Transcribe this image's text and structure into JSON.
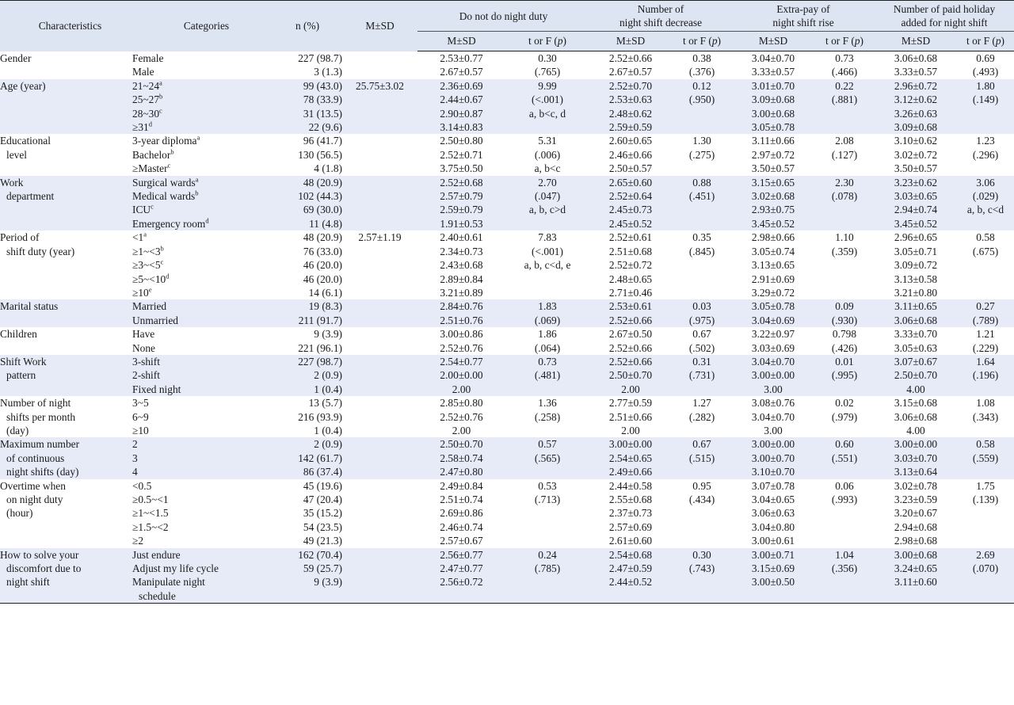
{
  "header": {
    "characteristics": "Characteristics",
    "categories": "Categories",
    "n_pct": "n (%)",
    "msd": "M±SD",
    "groups": [
      [
        "Do not do night duty"
      ],
      [
        "Number of",
        "night shift decrease"
      ],
      [
        "Extra-pay of",
        "night shift rise"
      ],
      [
        "Number of paid holiday",
        "added for night shift"
      ]
    ],
    "sub_msd": "M±SD",
    "sub_t": "t or F (p)"
  },
  "rows": [
    {
      "char": [
        "Gender"
      ],
      "cats": [
        [
          "Female",
          ""
        ],
        [
          "Male",
          ""
        ]
      ],
      "n": [
        "227 (98.7)",
        "3 (1.3)"
      ],
      "msd": [],
      "g": [
        {
          "m": [
            "2.53±0.77",
            "2.67±0.57"
          ],
          "t": [
            "0.30",
            "(.765)"
          ]
        },
        {
          "m": [
            "2.52±0.66",
            "2.67±0.57"
          ],
          "t": [
            "0.38",
            "(.376)"
          ]
        },
        {
          "m": [
            "3.04±0.70",
            "3.33±0.57"
          ],
          "t": [
            "0.73",
            "(.466)"
          ]
        },
        {
          "m": [
            "3.06±0.68",
            "3.33±0.57"
          ],
          "t": [
            "0.69",
            "(.493)"
          ]
        }
      ]
    },
    {
      "char": [
        "Age (year)"
      ],
      "cats": [
        [
          "21~24",
          "a"
        ],
        [
          "25~27",
          "b"
        ],
        [
          "28~30",
          "c"
        ],
        [
          "≥31",
          "d"
        ]
      ],
      "n": [
        "99 (43.0)",
        "78 (33.9)",
        "31 (13.5)",
        "22 (9.6)"
      ],
      "msd": [
        "25.75±3.02"
      ],
      "g": [
        {
          "m": [
            "2.36±0.69",
            "2.44±0.67",
            "2.90±0.87",
            "3.14±0.83"
          ],
          "t": [
            "9.99",
            "(<.001)",
            "a, b<c, d"
          ]
        },
        {
          "m": [
            "2.52±0.70",
            "2.53±0.63",
            "2.48±0.62",
            "2.59±0.59"
          ],
          "t": [
            "0.12",
            "(.950)"
          ]
        },
        {
          "m": [
            "3.01±0.70",
            "3.09±0.68",
            "3.00±0.68",
            "3.05±0.78"
          ],
          "t": [
            "0.22",
            "(.881)"
          ]
        },
        {
          "m": [
            "2.96±0.72",
            "3.12±0.62",
            "3.26±0.63",
            "3.09±0.68"
          ],
          "t": [
            "1.80",
            "(.149)"
          ]
        }
      ]
    },
    {
      "char": [
        "Educational",
        "level"
      ],
      "cats": [
        [
          "3-year diploma",
          "a"
        ],
        [
          "Bachelor",
          "b"
        ],
        [
          "≥Master",
          "c"
        ]
      ],
      "n": [
        "96 (41.7)",
        "130 (56.5)",
        "4 (1.8)"
      ],
      "msd": [],
      "g": [
        {
          "m": [
            "2.50±0.80",
            "2.52±0.71",
            "3.75±0.50"
          ],
          "t": [
            "5.31",
            "(.006)",
            "a, b<c"
          ]
        },
        {
          "m": [
            "2.60±0.65",
            "2.46±0.66",
            "2.50±0.57"
          ],
          "t": [
            "1.30",
            "(.275)"
          ]
        },
        {
          "m": [
            "3.11±0.66",
            "2.97±0.72",
            "3.50±0.57"
          ],
          "t": [
            "2.08",
            "(.127)"
          ]
        },
        {
          "m": [
            "3.10±0.62",
            "3.02±0.72",
            "3.50±0.57"
          ],
          "t": [
            "1.23",
            "(.296)"
          ]
        }
      ]
    },
    {
      "char": [
        "Work",
        "department"
      ],
      "cats": [
        [
          "Surgical wards",
          "a"
        ],
        [
          "Medical wards",
          "b"
        ],
        [
          "ICU",
          "c"
        ],
        [
          "Emergency room",
          "d"
        ]
      ],
      "n": [
        "48 (20.9)",
        "102 (44.3)",
        "69 (30.0)",
        "11 (4.8)"
      ],
      "msd": [],
      "g": [
        {
          "m": [
            "2.52±0.68",
            "2.57±0.79",
            "2.59±0.79",
            "1.91±0.53"
          ],
          "t": [
            "2.70",
            "(.047)",
            "a, b, c>d"
          ]
        },
        {
          "m": [
            "2.65±0.60",
            "2.52±0.64",
            "2.45±0.73",
            "2.45±0.52"
          ],
          "t": [
            "0.88",
            "(.451)"
          ]
        },
        {
          "m": [
            "3.15±0.65",
            "3.02±0.68",
            "2.93±0.75",
            "3.45±0.52"
          ],
          "t": [
            "2.30",
            "(.078)"
          ]
        },
        {
          "m": [
            "3.23±0.62",
            "3.03±0.65",
            "2.94±0.74",
            "3.45±0.52"
          ],
          "t": [
            "3.06",
            "(.029)",
            "a, b, c<d"
          ]
        }
      ]
    },
    {
      "char": [
        "Period of",
        "shift duty (year)"
      ],
      "cats": [
        [
          "<1",
          "a"
        ],
        [
          "≥1~<3",
          "b"
        ],
        [
          "≥3~<5",
          "c"
        ],
        [
          "≥5~<10",
          "d"
        ],
        [
          "≥10",
          "e"
        ]
      ],
      "n": [
        "48 (20.9)",
        "76 (33.0)",
        "46 (20.0)",
        "46 (20.0)",
        "14 (6.1)"
      ],
      "msd": [
        "2.57±1.19"
      ],
      "g": [
        {
          "m": [
            "2.40±0.61",
            "2.34±0.73",
            "2.43±0.68",
            "2.89±0.84",
            "3.21±0.89"
          ],
          "t": [
            "7.83",
            "(<.001)",
            "a, b, c<d, e"
          ]
        },
        {
          "m": [
            "2.52±0.61",
            "2.51±0.68",
            "2.52±0.72",
            "2.48±0.65",
            "2.71±0.46"
          ],
          "t": [
            "0.35",
            "(.845)"
          ]
        },
        {
          "m": [
            "2.98±0.66",
            "3.05±0.74",
            "3.13±0.65",
            "2.91±0.69",
            "3.29±0.72"
          ],
          "t": [
            "1.10",
            "(.359)"
          ]
        },
        {
          "m": [
            "2.96±0.65",
            "3.05±0.71",
            "3.09±0.72",
            "3.13±0.58",
            "3.21±0.80"
          ],
          "t": [
            "0.58",
            "(.675)"
          ]
        }
      ]
    },
    {
      "char": [
        "Marital status"
      ],
      "cats": [
        [
          "Married",
          ""
        ],
        [
          "Unmarried",
          ""
        ]
      ],
      "n": [
        "19 (8.3)",
        "211 (91.7)"
      ],
      "msd": [],
      "g": [
        {
          "m": [
            "2.84±0.76",
            "2.51±0.76"
          ],
          "t": [
            "1.83",
            "(.069)"
          ]
        },
        {
          "m": [
            "2.53±0.61",
            "2.52±0.66"
          ],
          "t": [
            "0.03",
            "(.975)"
          ]
        },
        {
          "m": [
            "3.05±0.78",
            "3.04±0.69"
          ],
          "t": [
            "0.09",
            "(.930)"
          ]
        },
        {
          "m": [
            "3.11±0.65",
            "3.06±0.68"
          ],
          "t": [
            "0.27",
            "(.789)"
          ]
        }
      ]
    },
    {
      "char": [
        "Children"
      ],
      "cats": [
        [
          "Have",
          ""
        ],
        [
          "None",
          ""
        ]
      ],
      "n": [
        "9 (3.9)",
        "221 (96.1)"
      ],
      "msd": [],
      "g": [
        {
          "m": [
            "3.00±0.86",
            "2.52±0.76"
          ],
          "t": [
            "1.86",
            "(.064)"
          ]
        },
        {
          "m": [
            "2.67±0.50",
            "2.52±0.66"
          ],
          "t": [
            "0.67",
            "(.502)"
          ]
        },
        {
          "m": [
            "3.22±0.97",
            "3.03±0.69"
          ],
          "t": [
            "0.798",
            "(.426)"
          ]
        },
        {
          "m": [
            "3.33±0.70",
            "3.05±0.63"
          ],
          "t": [
            "1.21",
            "(.229)"
          ]
        }
      ]
    },
    {
      "char": [
        "Shift Work",
        "pattern"
      ],
      "cats": [
        [
          "3-shift",
          ""
        ],
        [
          "2-shift",
          ""
        ],
        [
          "Fixed night",
          ""
        ]
      ],
      "n": [
        "227 (98.7)",
        "2 (0.9)",
        "1 (0.4)"
      ],
      "msd": [],
      "g": [
        {
          "m": [
            "2.54±0.77",
            "2.00±0.00",
            "2.00"
          ],
          "t": [
            "0.73",
            "(.481)"
          ]
        },
        {
          "m": [
            "2.52±0.66",
            "2.50±0.70",
            "2.00"
          ],
          "t": [
            "0.31",
            "(.731)"
          ]
        },
        {
          "m": [
            "3.04±0.70",
            "3.00±0.00",
            "3.00"
          ],
          "t": [
            "0.01",
            "(.995)"
          ]
        },
        {
          "m": [
            "3.07±0.67",
            "2.50±0.70",
            "4.00"
          ],
          "t": [
            "1.64",
            "(.196)"
          ]
        }
      ]
    },
    {
      "char": [
        "Number of night",
        "shifts per month",
        "(day)"
      ],
      "cats": [
        [
          "3~5",
          ""
        ],
        [
          "6~9",
          ""
        ],
        [
          "≥10",
          ""
        ]
      ],
      "n": [
        "13 (5.7)",
        "216 (93.9)",
        "1 (0.4)"
      ],
      "msd": [],
      "g": [
        {
          "m": [
            "2.85±0.80",
            "2.52±0.76",
            "2.00"
          ],
          "t": [
            "1.36",
            "(.258)"
          ]
        },
        {
          "m": [
            "2.77±0.59",
            "2.51±0.66",
            "2.00"
          ],
          "t": [
            "1.27",
            "(.282)"
          ]
        },
        {
          "m": [
            "3.08±0.76",
            "3.04±0.70",
            "3.00"
          ],
          "t": [
            "0.02",
            "(.979)"
          ]
        },
        {
          "m": [
            "3.15±0.68",
            "3.06±0.68",
            "4.00"
          ],
          "t": [
            "1.08",
            "(.343)"
          ]
        }
      ]
    },
    {
      "char": [
        "Maximum number",
        "of continuous",
        "night shifts (day)"
      ],
      "cats": [
        [
          "2",
          ""
        ],
        [
          "3",
          ""
        ],
        [
          "4",
          ""
        ]
      ],
      "n": [
        "2 (0.9)",
        "142 (61.7)",
        "86 (37.4)"
      ],
      "msd": [],
      "g": [
        {
          "m": [
            "2.50±0.70",
            "2.58±0.74",
            "2.47±0.80"
          ],
          "t": [
            "0.57",
            "(.565)"
          ]
        },
        {
          "m": [
            "3.00±0.00",
            "2.54±0.65",
            "2.49±0.66"
          ],
          "t": [
            "0.67",
            "(.515)"
          ]
        },
        {
          "m": [
            "3.00±0.00",
            "3.00±0.70",
            "3.10±0.70"
          ],
          "t": [
            "0.60",
            "(.551)"
          ]
        },
        {
          "m": [
            "3.00±0.00",
            "3.03±0.70",
            "3.13±0.64"
          ],
          "t": [
            "0.58",
            "(.559)"
          ]
        }
      ]
    },
    {
      "char": [
        "Overtime when",
        "on night duty",
        "(hour)"
      ],
      "cats": [
        [
          "<0.5",
          ""
        ],
        [
          "≥0.5~<1",
          ""
        ],
        [
          "≥1~<1.5",
          ""
        ],
        [
          "≥1.5~<2",
          ""
        ],
        [
          "≥2",
          ""
        ]
      ],
      "n": [
        "45 (19.6)",
        "47 (20.4)",
        "35 (15.2)",
        "54 (23.5)",
        "49 (21.3)"
      ],
      "msd": [],
      "g": [
        {
          "m": [
            "2.49±0.84",
            "2.51±0.74",
            "2.69±0.86",
            "2.46±0.74",
            "2.57±0.67"
          ],
          "t": [
            "0.53",
            "(.713)"
          ]
        },
        {
          "m": [
            "2.44±0.58",
            "2.55±0.68",
            "2.37±0.73",
            "2.57±0.69",
            "2.61±0.60"
          ],
          "t": [
            "0.95",
            "(.434)"
          ]
        },
        {
          "m": [
            "3.07±0.78",
            "3.04±0.65",
            "3.06±0.63",
            "3.04±0.80",
            "3.00±0.61"
          ],
          "t": [
            "0.06",
            "(.993)"
          ]
        },
        {
          "m": [
            "3.02±0.78",
            "3.23±0.59",
            "3.20±0.67",
            "2.94±0.68",
            "2.98±0.68"
          ],
          "t": [
            "1.75",
            "(.139)"
          ]
        }
      ]
    },
    {
      "char": [
        "How to solve your",
        "discomfort due to",
        "night shift"
      ],
      "cats": [
        [
          "Just endure",
          ""
        ],
        [
          "Adjust my life cycle",
          ""
        ],
        [
          "Manipulate night",
          ""
        ],
        [
          "schedule",
          "",
          true
        ]
      ],
      "n": [
        "162 (70.4)",
        "59 (25.7)",
        "9 (3.9)"
      ],
      "msd": [],
      "g": [
        {
          "m": [
            "2.56±0.77",
            "2.47±0.77",
            "2.56±0.72"
          ],
          "t": [
            "0.24",
            "(.785)"
          ]
        },
        {
          "m": [
            "2.54±0.68",
            "2.47±0.59",
            "2.44±0.52"
          ],
          "t": [
            "0.30",
            "(.743)"
          ]
        },
        {
          "m": [
            "3.00±0.71",
            "3.15±0.69",
            "3.00±0.50"
          ],
          "t": [
            "1.04",
            "(.356)"
          ]
        },
        {
          "m": [
            "3.00±0.68",
            "3.24±0.65",
            "3.11±0.60"
          ],
          "t": [
            "2.69",
            "(.070)"
          ]
        }
      ]
    }
  ]
}
